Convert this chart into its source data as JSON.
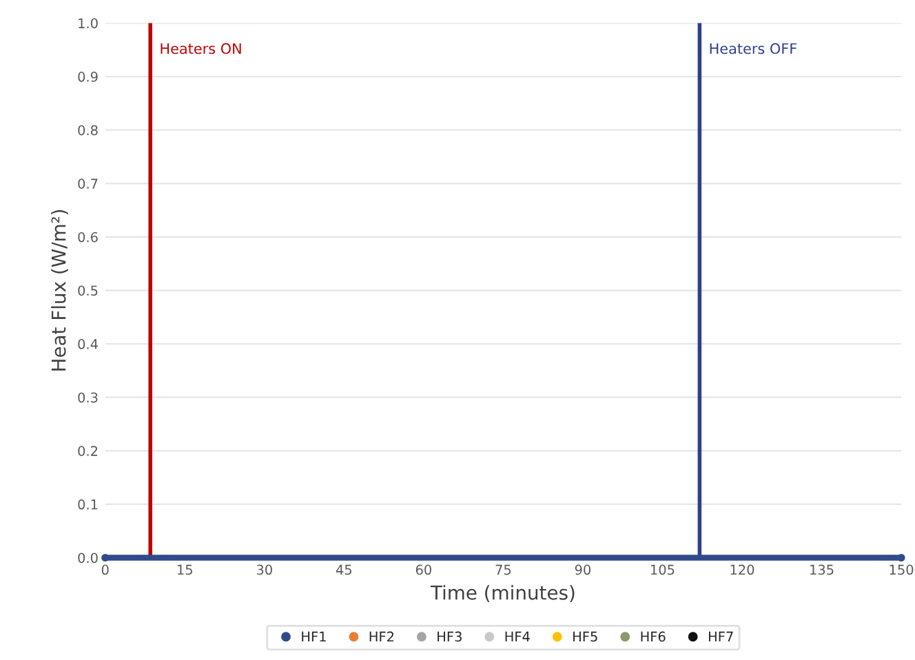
{
  "chart_data": {
    "type": "line",
    "xlabel": "Time (minutes)",
    "ylabel": "Heat Flux (W/m²)",
    "x": [
      0,
      150
    ],
    "series": [
      {
        "name": "HF1",
        "color": "#2f4b8c",
        "values": [
          0,
          0
        ]
      },
      {
        "name": "HF2",
        "color": "#ed7d31",
        "values": [
          null,
          null
        ]
      },
      {
        "name": "HF3",
        "color": "#a5a5a5",
        "values": [
          null,
          null
        ]
      },
      {
        "name": "HF4",
        "color": "#c8c8c8",
        "values": [
          null,
          null
        ]
      },
      {
        "name": "HF5",
        "color": "#ffc000",
        "values": [
          null,
          null
        ]
      },
      {
        "name": "HF6",
        "color": "#8a9a6a",
        "values": [
          null,
          null
        ]
      },
      {
        "name": "HF7",
        "color": "#111111",
        "values": [
          null,
          null
        ]
      }
    ],
    "xlim": [
      0,
      150
    ],
    "xticks": [
      0,
      15,
      30,
      45,
      60,
      75,
      90,
      105,
      120,
      135,
      150
    ],
    "ylim": [
      0,
      1
    ],
    "yticks": [
      {
        "value": 0,
        "label": "0.0"
      },
      {
        "value": 0.1,
        "label": "0.1"
      },
      {
        "value": 0.2,
        "label": "0.2"
      },
      {
        "value": 0.3,
        "label": "0.3"
      },
      {
        "value": 0.4,
        "label": "0.4"
      },
      {
        "value": 0.5,
        "label": "0.5"
      },
      {
        "value": 0.6,
        "label": "0.6"
      },
      {
        "value": 0.7,
        "label": "0.7"
      },
      {
        "value": 0.8,
        "label": "0.8"
      },
      {
        "value": 0.9,
        "label": "0.9"
      },
      {
        "value": 1,
        "label": "1.0"
      }
    ],
    "ref_lines": [
      {
        "axis": "x",
        "value": 8.5,
        "label": "Heaters ON",
        "color": "#c00000"
      },
      {
        "axis": "x",
        "value": 112,
        "label": "Heaters OFF",
        "color": "#2f3f8f"
      }
    ],
    "grid": "y",
    "legend": "bottom",
    "marker": "circle",
    "line_style": "solid"
  }
}
